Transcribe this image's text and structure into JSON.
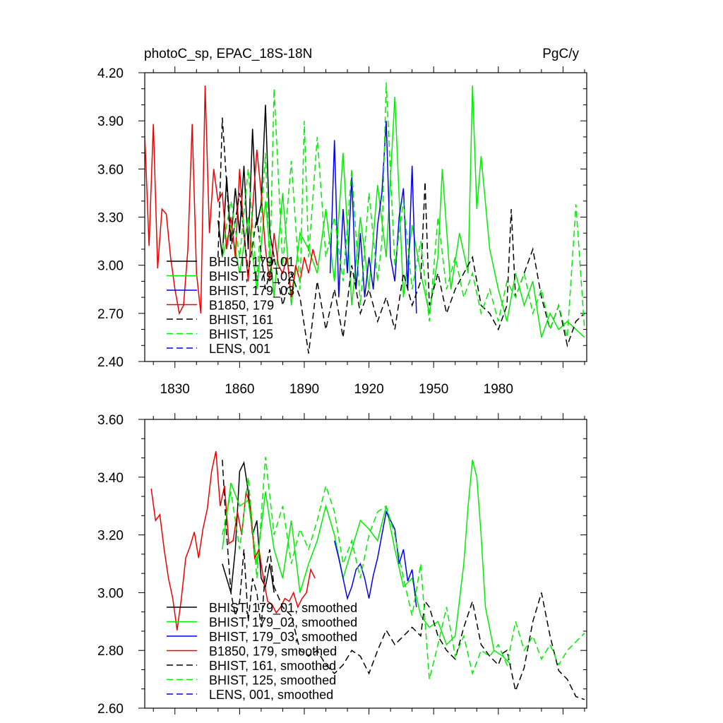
{
  "chart_data": [
    {
      "type": "line",
      "title": "photoC_sp, EPAC_18S-18N",
      "units": "PgC/y",
      "xlabel": "",
      "ylabel": "",
      "xlim": [
        1816,
        2021
      ],
      "ylim": [
        2.4,
        4.2
      ],
      "x_ticks": [
        1830,
        1860,
        1890,
        1920,
        1950,
        1980
      ],
      "y_ticks": [
        "2.40",
        "2.70",
        "3.00",
        "3.30",
        "3.60",
        "3.90",
        "4.20"
      ],
      "legend_position": "lower-left",
      "series": [
        {
          "name": "BHIST, 179_01",
          "color": "#000000",
          "dash": "solid",
          "x": [
            1850,
            1852,
            1854,
            1856,
            1858,
            1860,
            1862,
            1864,
            1866,
            1868,
            1870,
            1872,
            1874,
            1876
          ],
          "values": [
            3.28,
            3.05,
            3.55,
            3.15,
            3.48,
            3.2,
            3.62,
            3.1,
            3.85,
            3.25,
            3.38,
            4.0,
            3.2,
            3.05
          ]
        },
        {
          "name": "BHIST, 179_02",
          "color": "#00ee00",
          "dash": "solid",
          "x": [
            1852,
            1856,
            1860,
            1864,
            1868,
            1872,
            1876,
            1880,
            1884,
            1888,
            1892,
            1896,
            1900,
            1904,
            1908,
            1912,
            1916,
            1920,
            1924,
            1928,
            1932,
            1936,
            1940,
            1944,
            1948,
            1952,
            1954,
            1958,
            1962,
            1966,
            1968,
            1970,
            1972,
            1976,
            1980,
            1984,
            1988,
            1992,
            1996,
            2000,
            2004,
            2008,
            2012,
            2016,
            2020
          ],
          "values": [
            3.05,
            3.25,
            2.95,
            3.3,
            2.85,
            3.4,
            2.8,
            3.45,
            2.75,
            3.2,
            3.1,
            2.95,
            3.35,
            2.9,
            3.7,
            2.75,
            3.3,
            2.85,
            3.5,
            3.05,
            4.05,
            2.8,
            3.25,
            2.95,
            2.7,
            3.05,
            3.6,
            2.85,
            3.2,
            2.95,
            4.12,
            3.35,
            3.68,
            3.1,
            2.85,
            2.65,
            2.95,
            2.75,
            2.9,
            2.55,
            2.7,
            2.6,
            2.65,
            2.6,
            2.55
          ]
        },
        {
          "name": "BHIST, 179_03",
          "color": "#0000ee",
          "dash": "solid",
          "x": [
            1902,
            1904,
            1906,
            1908,
            1910,
            1912,
            1914,
            1916,
            1918,
            1920,
            1922,
            1924,
            1926,
            1928,
            1930,
            1932,
            1934,
            1936,
            1938,
            1940,
            1942
          ],
          "values": [
            2.95,
            3.78,
            2.8,
            3.35,
            2.95,
            3.55,
            2.85,
            3.2,
            2.8,
            3.05,
            2.85,
            3.25,
            3.45,
            3.9,
            3.05,
            2.9,
            3.3,
            3.48,
            2.85,
            3.62,
            2.7
          ]
        },
        {
          "name": "B1850, 179",
          "color": "#ee0000",
          "dash": "solid",
          "x": [
            1816,
            1818,
            1820,
            1822,
            1824,
            1826,
            1828,
            1830,
            1832,
            1834,
            1836,
            1838,
            1840,
            1842,
            1844,
            1846,
            1848,
            1850,
            1852,
            1854,
            1856,
            1858,
            1860,
            1862,
            1864,
            1866,
            1868,
            1870,
            1872,
            1874,
            1876,
            1878,
            1880,
            1882,
            1884,
            1886,
            1888,
            1890,
            1892,
            1894,
            1896
          ],
          "values": [
            3.82,
            3.12,
            3.88,
            2.98,
            3.35,
            3.32,
            3.05,
            2.85,
            2.7,
            2.75,
            3.1,
            3.88,
            2.95,
            2.7,
            4.12,
            3.2,
            3.6,
            3.4,
            3.45,
            3.1,
            3.3,
            3.05,
            3.6,
            3.2,
            2.9,
            3.35,
            3.72,
            3.45,
            3.1,
            2.9,
            3.2,
            3.0,
            2.95,
            3.05,
            2.8,
            3.0,
            2.9,
            3.05,
            2.95,
            3.1,
            3.0
          ]
        },
        {
          "name": "BHIST, 161",
          "color": "#000000",
          "dash": "dashed",
          "x": [
            1850,
            1852,
            1856,
            1860,
            1864,
            1868,
            1872,
            1876,
            1880,
            1884,
            1888,
            1892,
            1896,
            1900,
            1904,
            1908,
            1912,
            1916,
            1920,
            1924,
            1928,
            1932,
            1936,
            1940,
            1944,
            1946,
            1948,
            1952,
            1956,
            1960,
            1964,
            1968,
            1972,
            1976,
            1980,
            1984,
            1986,
            1988,
            1992,
            1996,
            2000,
            2004,
            2008,
            2012,
            2016,
            2020
          ],
          "values": [
            3.05,
            3.92,
            3.1,
            3.45,
            2.95,
            3.3,
            2.85,
            3.05,
            2.75,
            2.95,
            2.8,
            2.45,
            2.9,
            2.6,
            2.85,
            2.55,
            3.0,
            2.7,
            2.85,
            2.65,
            2.8,
            2.6,
            2.95,
            2.75,
            2.9,
            3.52,
            2.75,
            2.95,
            2.7,
            2.85,
            2.95,
            3.05,
            2.75,
            2.7,
            2.6,
            2.75,
            3.35,
            2.8,
            2.95,
            3.1,
            2.8,
            2.6,
            2.75,
            2.5,
            2.65,
            2.7
          ]
        },
        {
          "name": "BHIST, 125",
          "color": "#00ee00",
          "dash": "dashed",
          "x": [
            1852,
            1856,
            1860,
            1864,
            1868,
            1872,
            1874,
            1876,
            1880,
            1884,
            1888,
            1890,
            1892,
            1896,
            1900,
            1904,
            1908,
            1912,
            1916,
            1920,
            1924,
            1926,
            1928,
            1932,
            1936,
            1940,
            1944,
            1948,
            1952,
            1956,
            1960,
            1964,
            1968,
            1972,
            1976,
            1980,
            1984,
            1988,
            1992,
            1996,
            2000,
            2004,
            2008,
            2012,
            2016,
            2020
          ],
          "values": [
            3.1,
            3.4,
            3.05,
            3.6,
            2.9,
            3.7,
            2.95,
            4.1,
            3.0,
            3.65,
            2.85,
            3.9,
            3.05,
            3.8,
            3.05,
            3.3,
            2.9,
            3.6,
            2.75,
            3.45,
            2.9,
            3.15,
            4.14,
            3.0,
            3.4,
            2.85,
            3.15,
            2.65,
            3.3,
            2.85,
            3.05,
            2.8,
            2.95,
            2.7,
            2.85,
            2.65,
            2.9,
            2.8,
            2.95,
            2.7,
            2.85,
            2.6,
            2.75,
            2.55,
            3.38,
            2.6
          ]
        },
        {
          "name": "LENS, 001",
          "color": "#0000ee",
          "dash": "dashed",
          "x": [],
          "values": []
        }
      ]
    },
    {
      "type": "line",
      "title": "",
      "xlabel": "",
      "ylabel": "",
      "xlim": [
        1816,
        2021
      ],
      "ylim": [
        2.6,
        3.6
      ],
      "x_ticks": [
        1830,
        1860,
        1890,
        1920,
        1950,
        1980
      ],
      "y_ticks": [
        "2.60",
        "2.80",
        "3.00",
        "3.20",
        "3.40",
        "3.60"
      ],
      "legend_position": "lower-left",
      "series": [
        {
          "name": "BHIST, 179_01, smoothed",
          "color": "#000000",
          "dash": "solid",
          "x": [
            1852,
            1854,
            1856,
            1858,
            1860,
            1862,
            1864,
            1866,
            1868,
            1870,
            1872,
            1874,
            1876
          ],
          "values": [
            3.1,
            3.05,
            3.0,
            3.15,
            3.42,
            3.45,
            3.35,
            3.2,
            3.25,
            3.05,
            3.02,
            3.1,
            3.0
          ]
        },
        {
          "name": "BHIST, 179_02, smoothed",
          "color": "#00ee00",
          "dash": "solid",
          "x": [
            1852,
            1856,
            1860,
            1864,
            1868,
            1872,
            1876,
            1880,
            1884,
            1888,
            1892,
            1896,
            1900,
            1904,
            1908,
            1912,
            1916,
            1920,
            1924,
            1928,
            1932,
            1936,
            1940,
            1944,
            1948,
            1952,
            1956,
            1960,
            1964,
            1966,
            1968,
            1970,
            1972,
            1974,
            1978,
            1982,
            1986
          ],
          "values": [
            3.15,
            3.38,
            3.3,
            3.32,
            3.1,
            3.35,
            3.15,
            3.05,
            3.25,
            3.0,
            3.1,
            3.18,
            3.3,
            3.2,
            3.05,
            3.15,
            3.25,
            3.22,
            3.18,
            3.3,
            3.15,
            3.02,
            3.05,
            2.92,
            2.88,
            2.9,
            2.82,
            2.85,
            3.1,
            3.3,
            3.46,
            3.4,
            3.2,
            2.95,
            2.8,
            2.78,
            2.75
          ]
        },
        {
          "name": "BHIST, 179_03, smoothed",
          "color": "#0000ee",
          "dash": "solid",
          "x": [
            1904,
            1906,
            1908,
            1910,
            1912,
            1914,
            1916,
            1918,
            1920,
            1922,
            1924,
            1926,
            1928,
            1930,
            1932,
            1934,
            1936,
            1938,
            1940,
            1942
          ],
          "values": [
            3.18,
            3.12,
            3.05,
            2.98,
            3.02,
            3.08,
            3.1,
            3.05,
            2.98,
            3.06,
            3.12,
            3.2,
            3.28,
            3.25,
            3.22,
            3.1,
            3.15,
            3.04,
            3.08,
            2.95
          ]
        },
        {
          "name": "B1850, 179, smoothed",
          "color": "#ee0000",
          "dash": "solid",
          "x": [
            1819,
            1821,
            1823,
            1825,
            1827,
            1829,
            1831,
            1833,
            1835,
            1837,
            1839,
            1841,
            1843,
            1845,
            1847,
            1849,
            1851,
            1853,
            1855,
            1857,
            1859,
            1861,
            1863,
            1865,
            1867,
            1869,
            1871,
            1873,
            1875,
            1877,
            1879,
            1881,
            1883,
            1885,
            1887,
            1889,
            1891,
            1893,
            1895
          ],
          "values": [
            3.36,
            3.25,
            3.27,
            3.15,
            3.05,
            2.98,
            2.87,
            2.98,
            3.12,
            3.16,
            3.21,
            3.12,
            3.22,
            3.29,
            3.42,
            3.49,
            3.3,
            3.37,
            3.17,
            3.18,
            3.28,
            3.2,
            3.35,
            3.3,
            3.12,
            3.15,
            3.05,
            2.97,
            2.96,
            2.93,
            2.95,
            2.98,
            2.97,
            3.0,
            2.95,
            2.98,
            3.0,
            3.08,
            3.05
          ]
        },
        {
          "name": "BHIST, 161, smoothed",
          "color": "#000000",
          "dash": "dashed",
          "x": [
            1852,
            1854,
            1856,
            1858,
            1860,
            1862,
            1864,
            1866,
            1868,
            1870,
            1872,
            1874,
            1876,
            1880,
            1884,
            1888,
            1892,
            1896,
            1900,
            1904,
            1908,
            1912,
            1916,
            1920,
            1924,
            1928,
            1932,
            1936,
            1940,
            1944,
            1946,
            1948,
            1952,
            1956,
            1960,
            1964,
            1968,
            1972,
            1976,
            1980,
            1982,
            1984,
            1988,
            1992,
            1996,
            2000,
            2004,
            2008,
            2012,
            2016,
            2020
          ],
          "values": [
            3.46,
            3.2,
            3.0,
            2.92,
            2.97,
            3.15,
            2.9,
            3.05,
            3.0,
            2.88,
            3.08,
            3.15,
            3.02,
            2.95,
            2.92,
            2.8,
            2.78,
            2.8,
            2.75,
            2.72,
            2.75,
            2.8,
            2.78,
            2.72,
            2.8,
            2.87,
            2.82,
            2.85,
            2.88,
            2.85,
            2.97,
            2.95,
            2.85,
            2.8,
            2.77,
            2.88,
            2.97,
            2.82,
            2.78,
            2.75,
            2.79,
            2.8,
            2.66,
            2.74,
            2.9,
            3.0,
            2.85,
            2.73,
            2.7,
            2.64,
            2.63
          ]
        },
        {
          "name": "BHIST, 125, smoothed",
          "color": "#00ee00",
          "dash": "dashed",
          "x": [
            1852,
            1856,
            1860,
            1864,
            1868,
            1872,
            1876,
            1880,
            1884,
            1888,
            1892,
            1896,
            1900,
            1904,
            1908,
            1912,
            1916,
            1920,
            1924,
            1928,
            1932,
            1936,
            1940,
            1944,
            1948,
            1952,
            1956,
            1960,
            1964,
            1968,
            1972,
            1976,
            1980,
            1984,
            1988,
            1992,
            1996,
            2000,
            2004,
            2008,
            2012,
            2016,
            2020
          ],
          "values": [
            3.2,
            3.35,
            3.15,
            3.4,
            3.05,
            3.47,
            3.2,
            3.3,
            3.1,
            3.22,
            3.15,
            3.25,
            3.37,
            3.28,
            3.1,
            3.18,
            3.05,
            3.2,
            3.28,
            3.3,
            3.2,
            3.05,
            2.92,
            3.1,
            2.7,
            2.82,
            2.95,
            2.78,
            2.85,
            2.72,
            2.8,
            2.78,
            2.82,
            2.75,
            2.9,
            2.8,
            2.85,
            2.77,
            2.82,
            2.75,
            2.8,
            2.83,
            2.86
          ]
        },
        {
          "name": "LENS, 001, smoothed",
          "color": "#0000ee",
          "dash": "dashed",
          "x": [],
          "values": []
        }
      ]
    }
  ]
}
